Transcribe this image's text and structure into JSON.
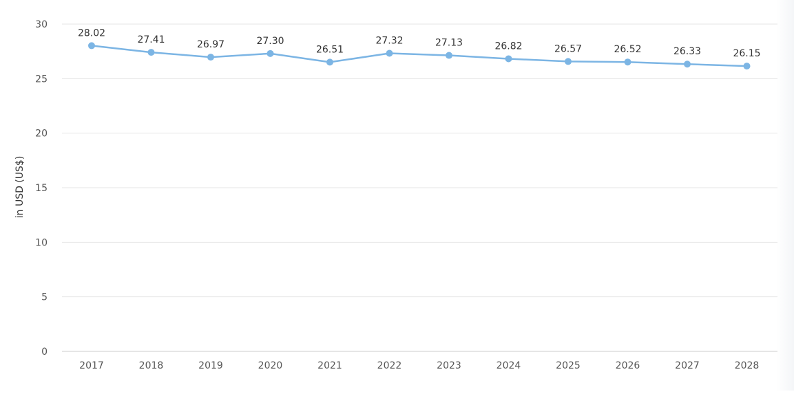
{
  "chart_data": {
    "type": "line",
    "title": "",
    "xlabel": "",
    "ylabel": "in USD (US$)",
    "categories": [
      "2017",
      "2018",
      "2019",
      "2020",
      "2021",
      "2022",
      "2023",
      "2024",
      "2025",
      "2026",
      "2027",
      "2028"
    ],
    "values": [
      28.02,
      27.41,
      26.97,
      27.3,
      26.51,
      27.32,
      27.13,
      26.82,
      26.57,
      26.52,
      26.33,
      26.15
    ],
    "data_labels": [
      "28.02",
      "27.41",
      "26.97",
      "27.30",
      "26.51",
      "27.32",
      "27.13",
      "26.82",
      "26.57",
      "26.52",
      "26.33",
      "26.15"
    ],
    "y_ticks": [
      "0",
      "5",
      "10",
      "15",
      "20",
      "25",
      "30"
    ],
    "ylim": [
      0,
      30
    ],
    "grid": true,
    "legend": "none",
    "colors": {
      "line": "#7cb5e4",
      "grid": "#e6e6e6",
      "axis": "#cccccc",
      "label_text": "#333333",
      "tick_text": "#555555"
    }
  }
}
